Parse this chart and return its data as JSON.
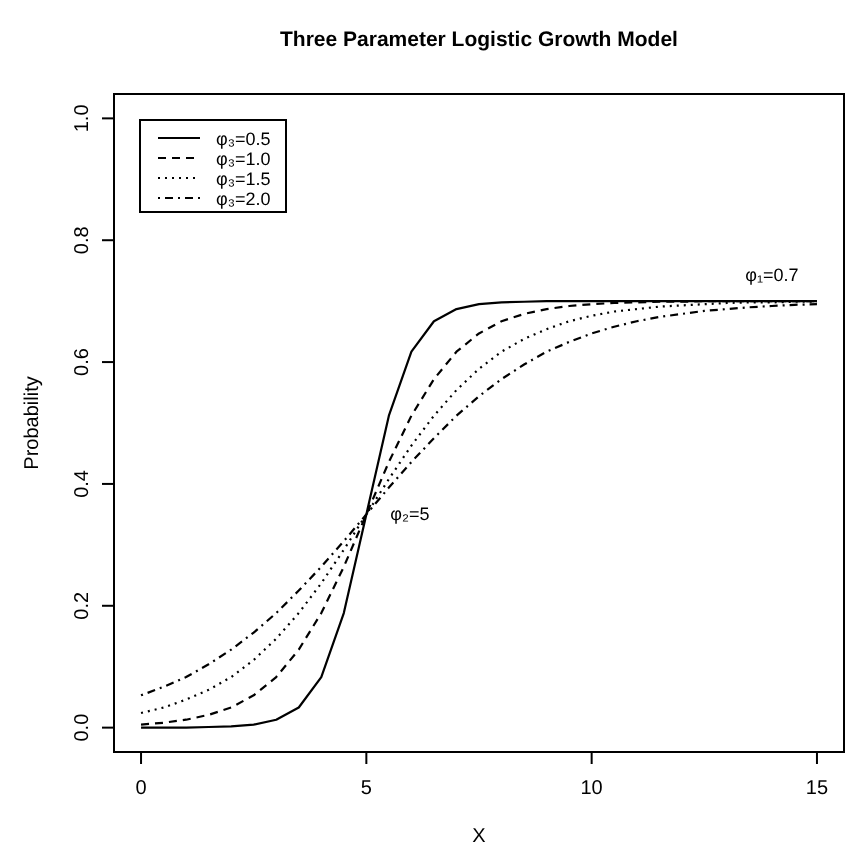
{
  "chart_data": {
    "type": "line",
    "title": "Three Parameter Logistic Growth Model",
    "xlabel": "X",
    "ylabel": "Probability",
    "x": [
      0,
      0.5,
      1,
      1.5,
      2,
      2.5,
      3,
      3.5,
      4,
      4.5,
      5,
      5.5,
      6,
      6.5,
      7,
      7.5,
      8,
      8.5,
      9,
      9.5,
      10,
      10.5,
      11,
      11.5,
      12,
      12.5,
      13,
      13.5,
      14,
      14.5,
      15
    ],
    "series": [
      {
        "name": "φ₃=0.5",
        "color": "#000000",
        "line_style": "solid",
        "values": [
          0.0,
          0.0,
          0.0,
          0.001,
          0.002,
          0.005,
          0.013,
          0.033,
          0.083,
          0.188,
          0.35,
          0.512,
          0.617,
          0.667,
          0.687,
          0.695,
          0.698,
          0.699,
          0.7,
          0.7,
          0.7,
          0.7,
          0.7,
          0.7,
          0.7,
          0.7,
          0.7,
          0.7,
          0.7,
          0.7,
          0.7
        ]
      },
      {
        "name": "φ₃=1.0",
        "color": "#000000",
        "line_style": "dashed",
        "values": [
          0.005,
          0.008,
          0.013,
          0.021,
          0.033,
          0.053,
          0.083,
          0.128,
          0.188,
          0.264,
          0.35,
          0.436,
          0.512,
          0.572,
          0.617,
          0.647,
          0.667,
          0.679,
          0.687,
          0.692,
          0.695,
          0.697,
          0.698,
          0.699,
          0.699,
          0.7,
          0.7,
          0.7,
          0.7,
          0.7,
          0.7
        ]
      },
      {
        "name": "φ₃=1.5",
        "color": "#000000",
        "line_style": "dotted",
        "values": [
          0.024,
          0.033,
          0.046,
          0.062,
          0.083,
          0.111,
          0.146,
          0.188,
          0.237,
          0.292,
          0.35,
          0.408,
          0.463,
          0.512,
          0.554,
          0.589,
          0.617,
          0.638,
          0.654,
          0.667,
          0.676,
          0.683,
          0.687,
          0.691,
          0.693,
          0.695,
          0.697,
          0.698,
          0.698,
          0.699,
          0.699
        ]
      },
      {
        "name": "φ₃=2.0",
        "color": "#000000",
        "line_style": "dashdot",
        "values": [
          0.053,
          0.067,
          0.083,
          0.104,
          0.128,
          0.156,
          0.188,
          0.225,
          0.264,
          0.306,
          0.35,
          0.394,
          0.436,
          0.475,
          0.512,
          0.544,
          0.572,
          0.596,
          0.617,
          0.633,
          0.647,
          0.658,
          0.667,
          0.674,
          0.679,
          0.684,
          0.687,
          0.69,
          0.692,
          0.694,
          0.695
        ]
      }
    ],
    "xlim": [
      -0.6,
      15.6
    ],
    "ylim": [
      -0.04,
      1.04
    ],
    "xticks": [
      0,
      5,
      10,
      15
    ],
    "yticks": [
      {
        "value": 0,
        "label": "0.0"
      },
      {
        "value": 0.2,
        "label": "0.2"
      },
      {
        "value": 0.4,
        "label": "0.4"
      },
      {
        "value": 0.6,
        "label": "0.6"
      },
      {
        "value": 0.8,
        "label": "0.8"
      },
      {
        "value": 1,
        "label": "1.0"
      }
    ],
    "grid": false,
    "legend": "top left",
    "marker": "none",
    "annotations": [
      {
        "text": "φ₁=0.7",
        "x": 14,
        "y": 0.7
      },
      {
        "text": "φ₂=5",
        "x": 5,
        "y": 0.35
      }
    ]
  }
}
